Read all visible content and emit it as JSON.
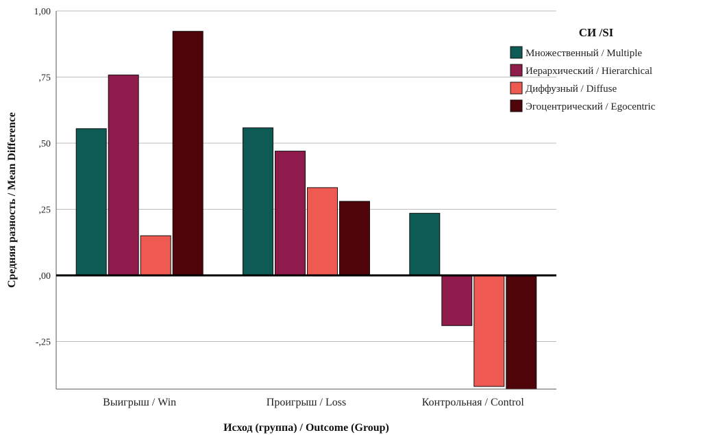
{
  "chart_data": {
    "type": "bar",
    "title": "",
    "xlabel": "Исход (группа) / Outcome (Group)",
    "ylabel": "Средняя разность / Mean Difference",
    "ylim": [
      -0.43,
      1.0
    ],
    "yticks": [
      -0.25,
      0.0,
      0.25,
      0.5,
      0.75,
      1.0
    ],
    "ytick_labels": [
      "-,25",
      ",00",
      ",25",
      ",50",
      ",75",
      "1,00"
    ],
    "grid": true,
    "legend_title": "СИ /SI",
    "legend_position": "top-right",
    "categories": [
      "Выигрыш / Win",
      "Проигрыш / Loss",
      "Контрольная / Control"
    ],
    "series": [
      {
        "name": "Множественный / Multiple",
        "color": "#0e5b55",
        "values": [
          0.555,
          0.558,
          0.235
        ]
      },
      {
        "name": "Иерархический / Hierarchical",
        "color": "#8e1b4b",
        "values": [
          0.758,
          0.47,
          -0.19
        ]
      },
      {
        "name": "Диффузный / Diffuse",
        "color": "#ee5a52",
        "values": [
          0.15,
          0.332,
          -0.42
        ]
      },
      {
        "name": "Эгоцентрический / Egocentric",
        "color": "#4e0408",
        "values": [
          0.923,
          0.28,
          -0.43
        ]
      }
    ]
  }
}
